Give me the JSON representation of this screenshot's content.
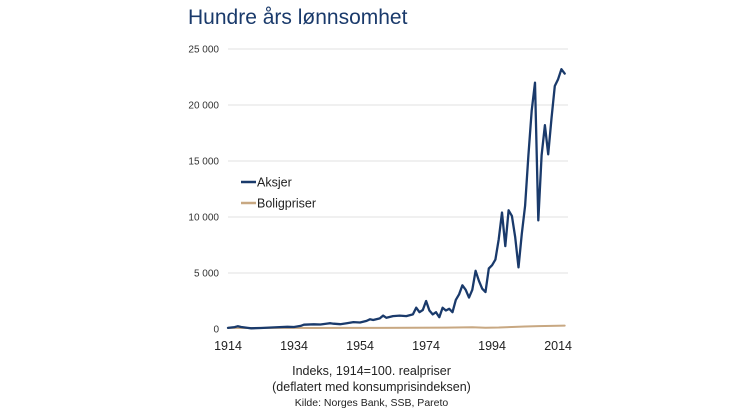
{
  "chart_data": {
    "type": "line",
    "title": "Hundre års lønnsomhet",
    "xlabel": "",
    "ylabel": "",
    "xlim": [
      1914,
      2017
    ],
    "ylim": [
      0,
      25000
    ],
    "yticks": [
      0,
      5000,
      10000,
      15000,
      20000,
      25000
    ],
    "ytick_labels": [
      "0",
      "5 000",
      "10 000",
      "15 000",
      "20 000",
      "25 000"
    ],
    "xticks": [
      1914,
      1934,
      1954,
      1974,
      1994,
      2014
    ],
    "xtick_labels": [
      "1914",
      "1934",
      "1954",
      "1974",
      "1994",
      "2014"
    ],
    "grid": "horizontal",
    "legend_position": "center-left",
    "notes": [
      "Indeks, 1914=100. realpriser",
      "(deflatert med konsumprisindeksen)"
    ],
    "source": "Kilde: Norges Bank, SSB, Pareto",
    "series": [
      {
        "name": "Aksjer",
        "color": "#1a3a6b",
        "points": [
          [
            1914,
            100
          ],
          [
            1916,
            170
          ],
          [
            1917,
            250
          ],
          [
            1918,
            180
          ],
          [
            1920,
            100
          ],
          [
            1921,
            60
          ],
          [
            1924,
            90
          ],
          [
            1928,
            140
          ],
          [
            1932,
            200
          ],
          [
            1934,
            180
          ],
          [
            1936,
            280
          ],
          [
            1937,
            380
          ],
          [
            1940,
            420
          ],
          [
            1942,
            400
          ],
          [
            1944,
            480
          ],
          [
            1945,
            520
          ],
          [
            1946,
            470
          ],
          [
            1948,
            430
          ],
          [
            1950,
            520
          ],
          [
            1952,
            620
          ],
          [
            1954,
            580
          ],
          [
            1956,
            720
          ],
          [
            1957,
            870
          ],
          [
            1958,
            800
          ],
          [
            1960,
            950
          ],
          [
            1961,
            1200
          ],
          [
            1962,
            1000
          ],
          [
            1964,
            1150
          ],
          [
            1966,
            1200
          ],
          [
            1968,
            1150
          ],
          [
            1970,
            1300
          ],
          [
            1971,
            1900
          ],
          [
            1972,
            1500
          ],
          [
            1973,
            1700
          ],
          [
            1974,
            2500
          ],
          [
            1975,
            1650
          ],
          [
            1976,
            1300
          ],
          [
            1977,
            1500
          ],
          [
            1978,
            1050
          ],
          [
            1979,
            1900
          ],
          [
            1980,
            1650
          ],
          [
            1981,
            1800
          ],
          [
            1982,
            1500
          ],
          [
            1983,
            2600
          ],
          [
            1984,
            3100
          ],
          [
            1985,
            3900
          ],
          [
            1986,
            3500
          ],
          [
            1987,
            2800
          ],
          [
            1988,
            3500
          ],
          [
            1989,
            5200
          ],
          [
            1990,
            4300
          ],
          [
            1991,
            3600
          ],
          [
            1992,
            3300
          ],
          [
            1993,
            5400
          ],
          [
            1994,
            5700
          ],
          [
            1995,
            6200
          ],
          [
            1996,
            8000
          ],
          [
            1997,
            10400
          ],
          [
            1998,
            7400
          ],
          [
            1999,
            10600
          ],
          [
            2000,
            10100
          ],
          [
            2001,
            8200
          ],
          [
            2002,
            5500
          ],
          [
            2003,
            8500
          ],
          [
            2004,
            11000
          ],
          [
            2005,
            15500
          ],
          [
            2006,
            19500
          ],
          [
            2007,
            22000
          ],
          [
            2008,
            9700
          ],
          [
            2009,
            15500
          ],
          [
            2010,
            18200
          ],
          [
            2011,
            15600
          ],
          [
            2012,
            18800
          ],
          [
            2013,
            21700
          ],
          [
            2014,
            22300
          ],
          [
            2015,
            23200
          ],
          [
            2016,
            22800
          ]
        ]
      },
      {
        "name": "Boligpriser",
        "color": "#c8a882",
        "points": [
          [
            1914,
            100
          ],
          [
            1920,
            90
          ],
          [
            1930,
            95
          ],
          [
            1940,
            85
          ],
          [
            1950,
            95
          ],
          [
            1960,
            100
          ],
          [
            1970,
            110
          ],
          [
            1980,
            125
          ],
          [
            1988,
            150
          ],
          [
            1992,
            115
          ],
          [
            1996,
            130
          ],
          [
            2000,
            180
          ],
          [
            2004,
            220
          ],
          [
            2008,
            260
          ],
          [
            2012,
            280
          ],
          [
            2016,
            300
          ]
        ]
      }
    ]
  }
}
